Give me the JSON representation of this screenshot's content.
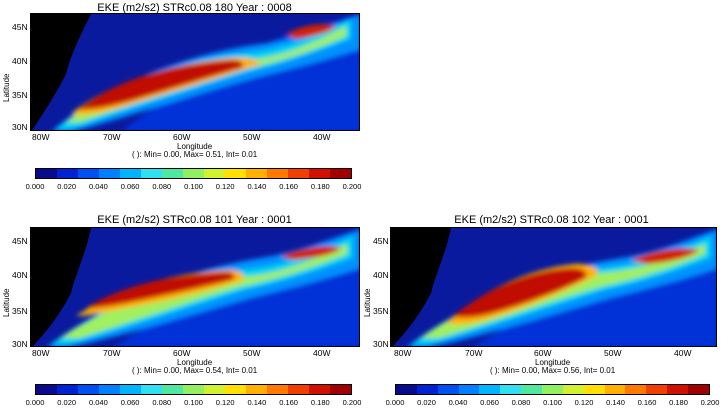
{
  "panels": [
    {
      "title": "EKE (m2/s2) STRc0.08 180 Year : 0008",
      "ylabel": "Latitude",
      "xlabel": "Longitude",
      "stats": "( ): Min= 0.00, Max= 0.51, Int= 0.01",
      "lat_ticks": [
        "45N",
        "40N",
        "35N",
        "30N"
      ],
      "lon_ticks": [
        "80W",
        "70W",
        "60W",
        "50W",
        "40W"
      ]
    },
    {
      "title": "EKE (m2/s2) STRc0.08 101 Year : 0001",
      "ylabel": "Latitude",
      "xlabel": "Longitude",
      "stats": "( ): Min= 0.00, Max= 0.54, Int= 0.01",
      "lat_ticks": [
        "45N",
        "40N",
        "35N",
        "30N"
      ],
      "lon_ticks": [
        "80W",
        "70W",
        "60W",
        "50W",
        "40W"
      ]
    },
    {
      "title": "EKE (m2/s2) STRc0.08 102 Year : 0001",
      "ylabel": "Latitude",
      "xlabel": "Longitude",
      "stats": "( ): Min= 0.00, Max= 0.56, Int= 0.01",
      "lat_ticks": [
        "45N",
        "40N",
        "35N",
        "30N"
      ],
      "lon_ticks": [
        "80W",
        "70W",
        "60W",
        "50W",
        "40W"
      ]
    }
  ],
  "colorbar": {
    "labels": [
      "0.000",
      "0.020",
      "0.040",
      "0.060",
      "0.080",
      "0.100",
      "0.120",
      "0.140",
      "0.160",
      "0.180",
      "0.200"
    ],
    "colors": [
      "#0a0a8c",
      "#0022d0",
      "#0050f0",
      "#0080ff",
      "#00b4ff",
      "#30e0f0",
      "#50e8a0",
      "#90f060",
      "#d0f030",
      "#ffe000",
      "#ffb000",
      "#ff7800",
      "#f04000",
      "#d01000",
      "#a00000"
    ]
  },
  "chart_data": [
    {
      "type": "heatmap",
      "title": "EKE (m2/s2) STRc0.08 180 Year : 0008",
      "xlabel": "Longitude",
      "ylabel": "Latitude",
      "x_ticks": [
        "80W",
        "70W",
        "60W",
        "50W",
        "40W"
      ],
      "y_ticks": [
        "45N",
        "40N",
        "35N",
        "30N"
      ],
      "color_scale_range": [
        0.0,
        0.2
      ],
      "stats": {
        "min": 0.0,
        "max": 0.51,
        "int": 0.01
      }
    },
    {
      "type": "heatmap",
      "title": "EKE (m2/s2) STRc0.08 101 Year : 0001",
      "xlabel": "Longitude",
      "ylabel": "Latitude",
      "x_ticks": [
        "80W",
        "70W",
        "60W",
        "50W",
        "40W"
      ],
      "y_ticks": [
        "45N",
        "40N",
        "35N",
        "30N"
      ],
      "color_scale_range": [
        0.0,
        0.2
      ],
      "stats": {
        "min": 0.0,
        "max": 0.54,
        "int": 0.01
      }
    },
    {
      "type": "heatmap",
      "title": "EKE (m2/s2) STRc0.08 102 Year : 0001",
      "xlabel": "Longitude",
      "ylabel": "Latitude",
      "x_ticks": [
        "80W",
        "70W",
        "60W",
        "50W",
        "40W"
      ],
      "y_ticks": [
        "45N",
        "40N",
        "35N",
        "30N"
      ],
      "color_scale_range": [
        0.0,
        0.2
      ],
      "stats": {
        "min": 0.0,
        "max": 0.56,
        "int": 0.01
      }
    }
  ]
}
